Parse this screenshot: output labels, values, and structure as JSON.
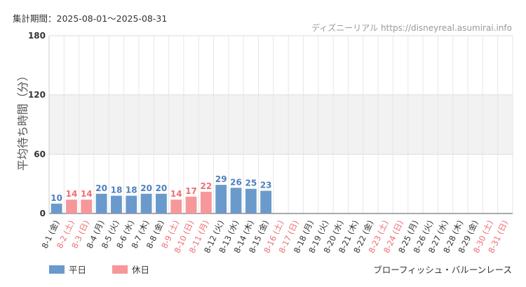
{
  "header": {
    "period": "集計期間：2025-08-01～2025-08-31",
    "source": "ディズニーリアル https://disneyreal.asumirai.info"
  },
  "footer": {
    "attraction": "ブローフィッシュ・バルーンレース"
  },
  "colors": {
    "weekday": "#6a9acb",
    "holiday": "#f6979a",
    "weekday_label": "#4f7fbd",
    "holiday_label": "#ee6e73",
    "band": "#f2f2f2"
  },
  "chart_data": {
    "type": "bar",
    "ylabel": "平均待ち時間（分）",
    "ylim": [
      0,
      180
    ],
    "yticks": [
      0,
      60,
      120,
      180
    ],
    "grid": true,
    "legend_position": "bottom-left",
    "legend": [
      {
        "key": "weekday",
        "label": "平日"
      },
      {
        "key": "holiday",
        "label": "休日"
      }
    ],
    "categories": [
      "8-1 (金)",
      "8-2 (土)",
      "8-3 (日)",
      "8-4 (月)",
      "8-5 (火)",
      "8-6 (水)",
      "8-7 (木)",
      "8-8 (金)",
      "8-9 (土)",
      "8-10 (日)",
      "8-11 (月)",
      "8-12 (火)",
      "8-13 (水)",
      "8-14 (木)",
      "8-15 (金)",
      "8-16 (土)",
      "8-17 (日)",
      "8-18 (月)",
      "8-19 (火)",
      "8-20 (水)",
      "8-21 (木)",
      "8-22 (金)",
      "8-23 (土)",
      "8-24 (日)",
      "8-25 (月)",
      "8-26 (火)",
      "8-27 (水)",
      "8-28 (木)",
      "8-29 (金)",
      "8-30 (土)",
      "8-31 (日)"
    ],
    "day_type": [
      "weekday",
      "holiday",
      "holiday",
      "weekday",
      "weekday",
      "weekday",
      "weekday",
      "weekday",
      "holiday",
      "holiday",
      "holiday",
      "weekday",
      "weekday",
      "weekday",
      "weekday",
      "holiday",
      "holiday",
      "weekday",
      "weekday",
      "weekday",
      "weekday",
      "weekday",
      "holiday",
      "holiday",
      "weekday",
      "weekday",
      "weekday",
      "weekday",
      "weekday",
      "holiday",
      "holiday"
    ],
    "values": [
      10,
      14,
      14,
      20,
      18,
      18,
      20,
      20,
      14,
      17,
      22,
      29,
      26,
      25,
      23,
      null,
      null,
      null,
      null,
      null,
      null,
      null,
      null,
      null,
      null,
      null,
      null,
      null,
      null,
      null,
      null
    ]
  }
}
